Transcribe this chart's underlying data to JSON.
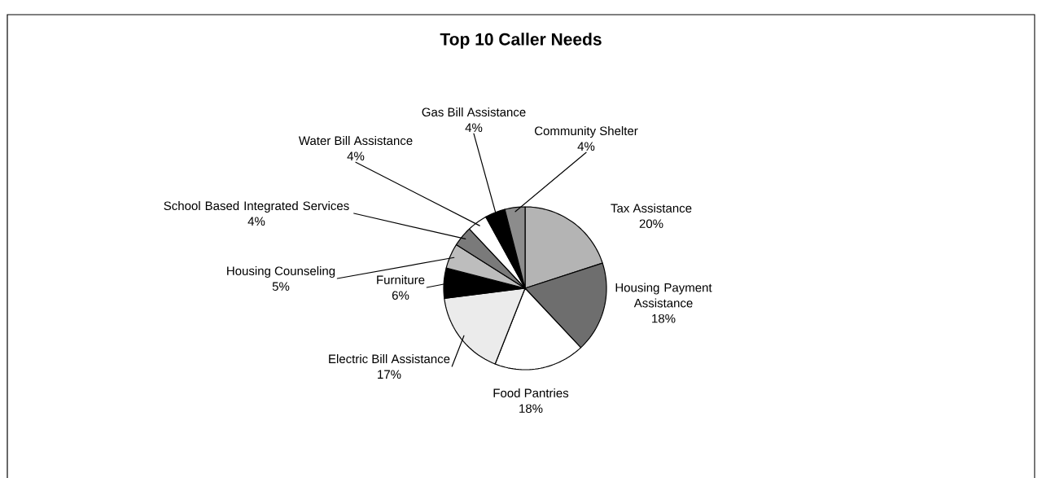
{
  "chart_data": {
    "type": "pie",
    "title": "Top 10 Caller Needs",
    "categories": [
      "Tax Assistance",
      "Housing Payment Assistance",
      "Food Pantries",
      "Electric Bill Assistance",
      "Furniture",
      "Housing Counseling",
      "School Based Integrated Services",
      "Water Bill Assistance",
      "Gas Bill Assistance",
      "Community Shelter"
    ],
    "values": [
      20,
      18,
      18,
      17,
      6,
      5,
      4,
      4,
      4,
      4
    ],
    "value_labels": [
      "20%",
      "18%",
      "18%",
      "17%",
      "6%",
      "5%",
      "4%",
      "4%",
      "4%",
      "4%"
    ],
    "colors": [
      "#b4b4b4",
      "#6e6e6e",
      "#ffffff",
      "#ebebeb",
      "#000000",
      "#bdbdbd",
      "#7a7a7a",
      "#ffffff",
      "#000000",
      "#8c8c8c"
    ]
  }
}
